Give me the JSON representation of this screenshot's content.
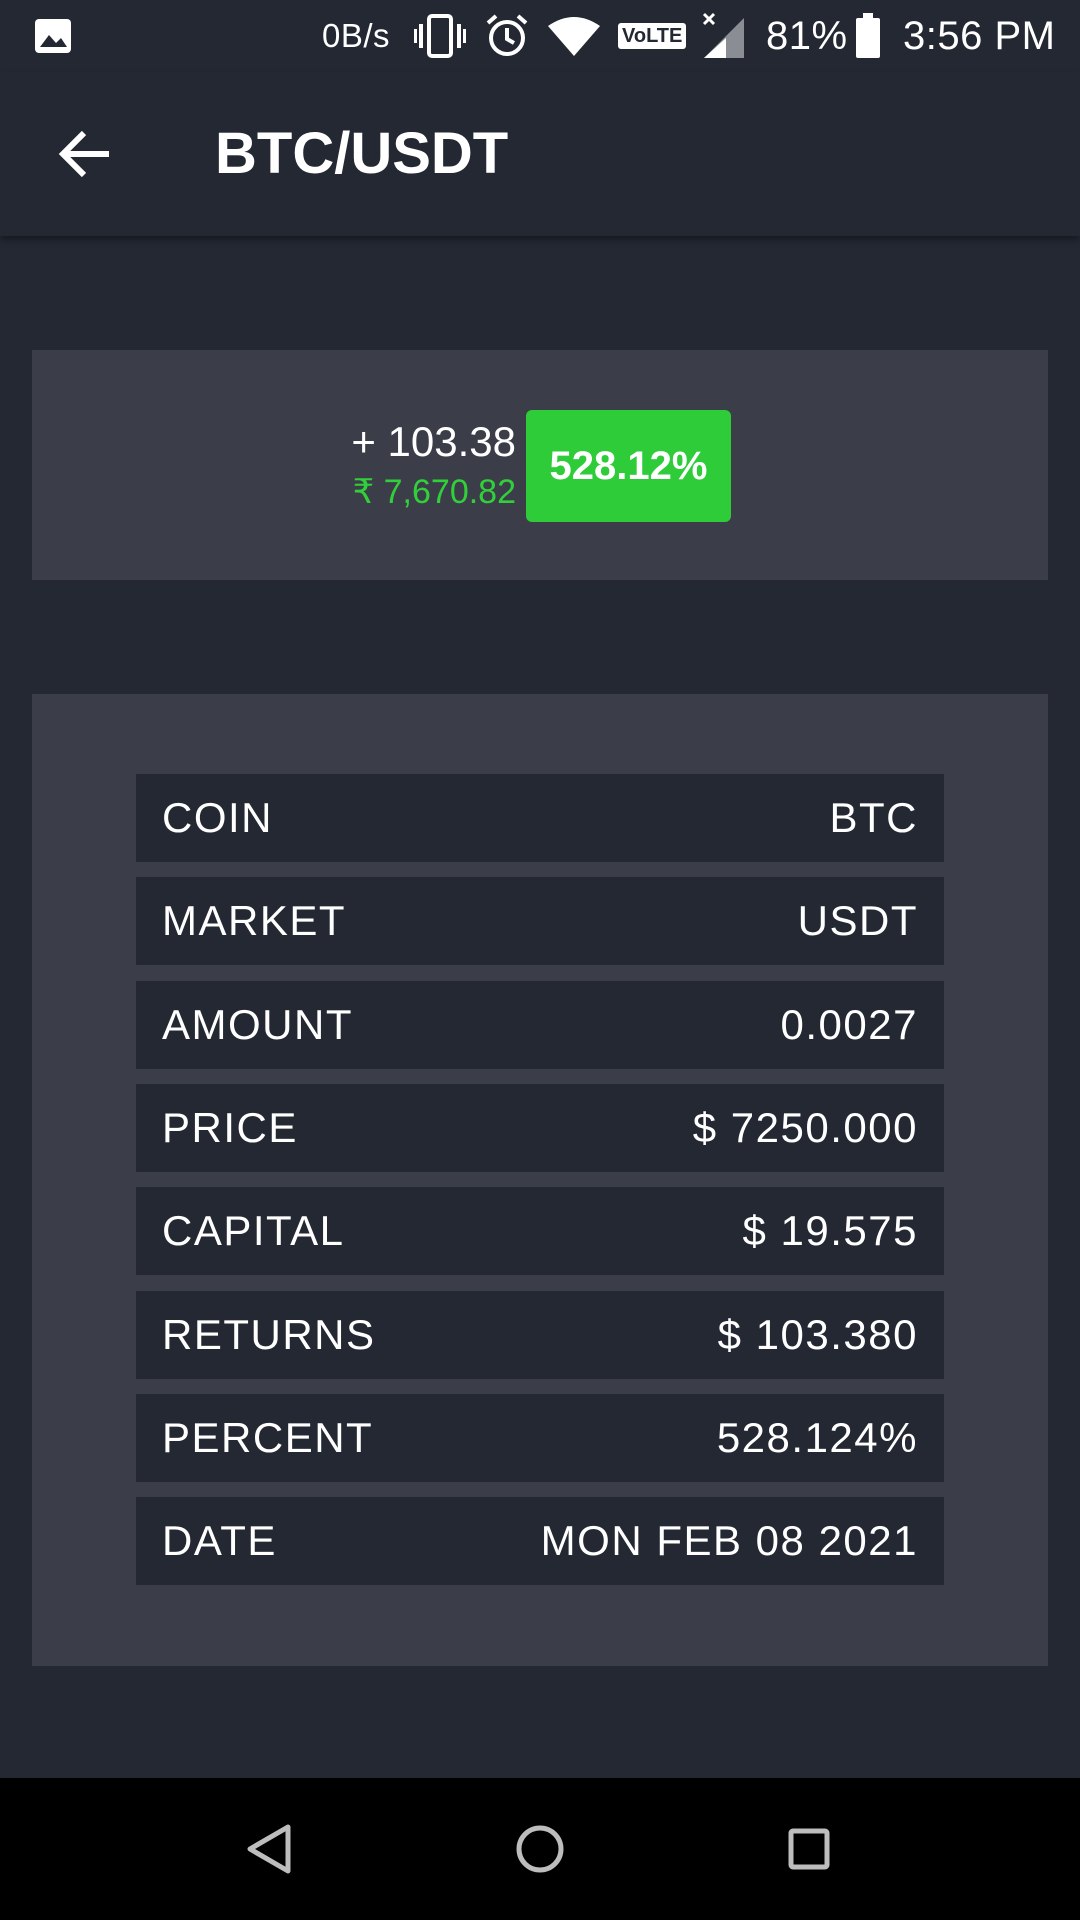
{
  "status_bar": {
    "net_speed": "0B/s",
    "volte": "VoLTE",
    "battery": "81%",
    "time": "3:56 PM"
  },
  "app_bar": {
    "title": "BTC/USDT"
  },
  "summary": {
    "gain_abs": "+ 103.38",
    "gain_inr": "₹ 7,670.82",
    "percent": "528.12%",
    "accent_color": "#2ecc38"
  },
  "details": {
    "rows": [
      {
        "label": "COIN",
        "value": "BTC"
      },
      {
        "label": "MARKET",
        "value": "USDT"
      },
      {
        "label": "AMOUNT",
        "value": "0.0027"
      },
      {
        "label": "PRICE",
        "value": "$ 7250.000"
      },
      {
        "label": "CAPITAL",
        "value": "$ 19.575"
      },
      {
        "label": "RETURNS",
        "value": "$ 103.380"
      },
      {
        "label": "PERCENT",
        "value": "528.124%"
      },
      {
        "label": "DATE",
        "value": "MON FEB 08 2021"
      }
    ]
  },
  "icons": {
    "back": "arrow-left-icon",
    "nav_back": "triangle-back-icon",
    "nav_home": "circle-home-icon",
    "nav_recents": "square-recents-icon"
  }
}
